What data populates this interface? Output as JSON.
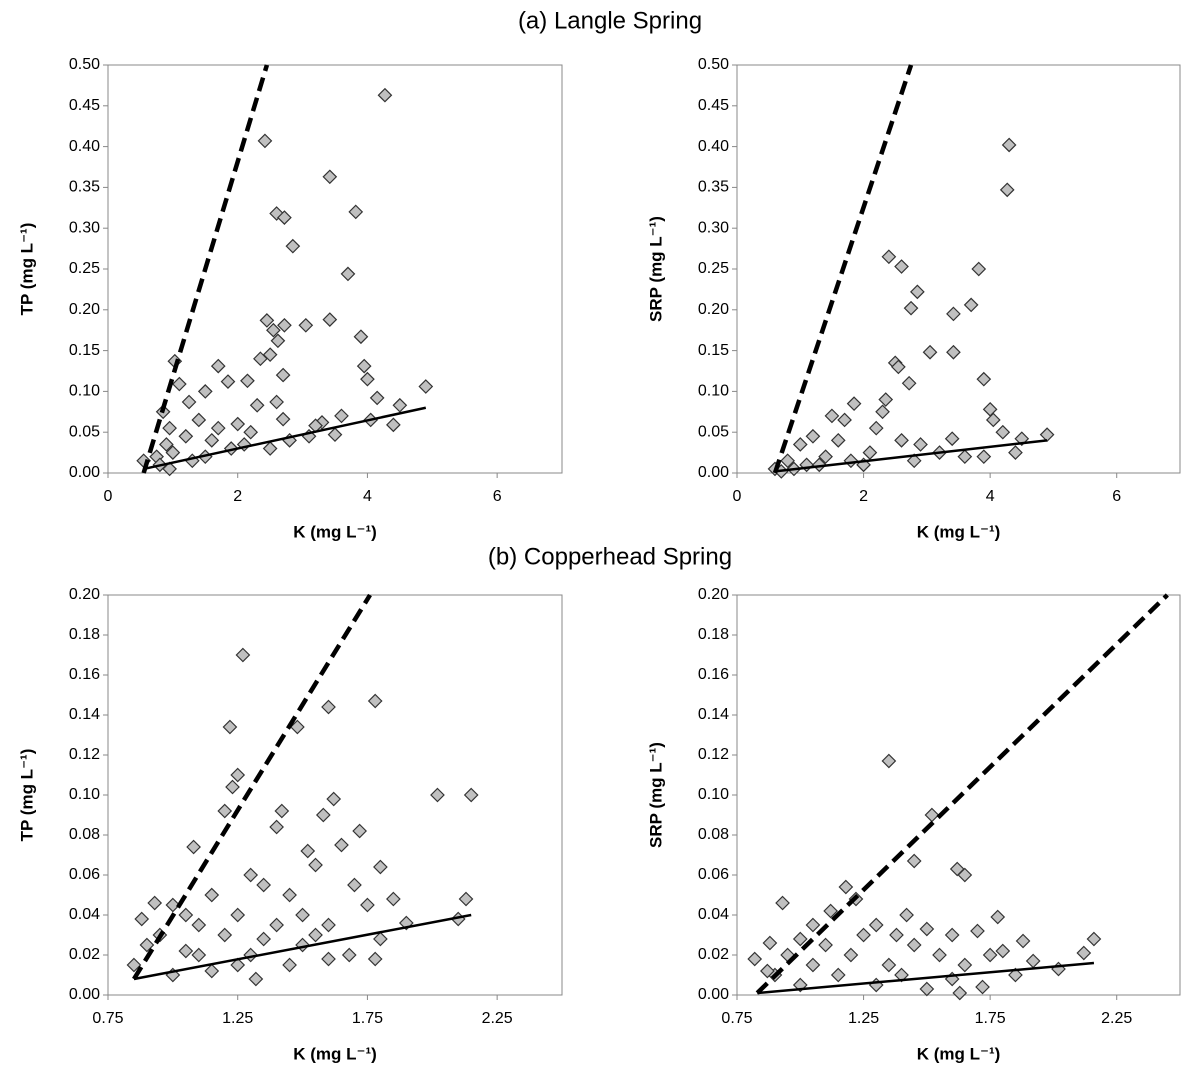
{
  "titles": [
    "(a) Langle Spring",
    "(b) Copperhead Spring"
  ],
  "chart_data": [
    {
      "type": "scatter",
      "x_label": "K (mg L⁻¹)",
      "y_label": "TP (mg L⁻¹)",
      "color": "#c0c0c0",
      "edgecolor": "#333333",
      "xlim": [
        0,
        7
      ],
      "ylim": [
        0,
        0.5
      ],
      "xticks": [
        0,
        2,
        4,
        6
      ],
      "yticks": [
        {
          "value": 0,
          "label": "0.00"
        },
        {
          "value": 0.05,
          "label": "0.05"
        },
        {
          "value": 0.1,
          "label": "0.10"
        },
        {
          "value": 0.15,
          "label": "0.15"
        },
        {
          "value": 0.2,
          "label": "0.20"
        },
        {
          "value": 0.25,
          "label": "0.25"
        },
        {
          "value": 0.3,
          "label": "0.30"
        },
        {
          "value": 0.35,
          "label": "0.35"
        },
        {
          "value": 0.4,
          "label": "0.40"
        },
        {
          "value": 0.45,
          "label": "0.45"
        },
        {
          "value": 0.5,
          "label": "0.50"
        }
      ],
      "x": [
        4.27,
        2.42,
        3.42,
        2.6,
        2.72,
        3.82,
        2.85,
        3.7,
        2.45,
        3.42,
        3.05,
        2.72,
        2.55,
        3.9,
        2.62,
        2.35,
        2.5,
        1.7,
        1.03,
        3.95,
        2.7,
        4.0,
        1.85,
        2.15,
        1.1,
        4.9,
        1.5,
        4.15,
        2.6,
        1.25,
        4.5,
        2.3,
        0.85,
        3.6,
        4.05,
        2.7,
        1.4,
        3.3,
        2.0,
        0.95,
        4.4,
        3.2,
        1.7,
        2.2,
        3.5,
        1.2,
        2.8,
        1.6,
        3.1,
        0.9,
        1.9,
        1.0,
        2.5,
        0.75,
        1.3,
        0.55,
        0.95,
        0.8,
        1.5,
        2.1
      ],
      "values": [
        0.463,
        0.407,
        0.363,
        0.318,
        0.313,
        0.32,
        0.278,
        0.244,
        0.187,
        0.188,
        0.181,
        0.181,
        0.175,
        0.167,
        0.162,
        0.14,
        0.145,
        0.131,
        0.137,
        0.131,
        0.12,
        0.115,
        0.112,
        0.113,
        0.109,
        0.106,
        0.1,
        0.092,
        0.087,
        0.087,
        0.083,
        0.083,
        0.075,
        0.07,
        0.065,
        0.066,
        0.065,
        0.062,
        0.06,
        0.055,
        0.059,
        0.058,
        0.055,
        0.05,
        0.047,
        0.045,
        0.04,
        0.04,
        0.045,
        0.035,
        0.03,
        0.025,
        0.03,
        0.02,
        0.015,
        0.015,
        0.005,
        0.01,
        0.02,
        0.035
      ],
      "lines": [
        {
          "style": "dashed",
          "x": [
            0.55,
            2.45
          ],
          "values": [
            0,
            0.5
          ]
        },
        {
          "style": "solid",
          "x": [
            0.55,
            4.9
          ],
          "values": [
            0.005,
            0.08
          ]
        }
      ]
    },
    {
      "type": "scatter",
      "x_label": "K (mg L⁻¹)",
      "y_label": "SRP (mg L⁻¹)",
      "color": "#c0c0c0",
      "edgecolor": "#333333",
      "xlim": [
        0,
        7
      ],
      "ylim": [
        0,
        0.5
      ],
      "xticks": [
        0,
        2,
        4,
        6
      ],
      "yticks": [
        {
          "value": 0,
          "label": "0.00"
        },
        {
          "value": 0.05,
          "label": "0.05"
        },
        {
          "value": 0.1,
          "label": "0.10"
        },
        {
          "value": 0.15,
          "label": "0.15"
        },
        {
          "value": 0.2,
          "label": "0.20"
        },
        {
          "value": 0.25,
          "label": "0.25"
        },
        {
          "value": 0.3,
          "label": "0.30"
        },
        {
          "value": 0.35,
          "label": "0.35"
        },
        {
          "value": 0.4,
          "label": "0.40"
        },
        {
          "value": 0.45,
          "label": "0.45"
        },
        {
          "value": 0.5,
          "label": "0.50"
        }
      ],
      "x": [
        4.3,
        4.27,
        2.4,
        2.6,
        3.82,
        2.85,
        3.7,
        2.75,
        3.42,
        3.05,
        3.42,
        2.5,
        2.55,
        3.9,
        2.72,
        2.35,
        2.3,
        4.0,
        1.85,
        4.05,
        1.5,
        1.7,
        2.2,
        4.2,
        1.2,
        2.6,
        3.4,
        4.5,
        4.9,
        1.0,
        1.6,
        2.9,
        3.6,
        2.1,
        0.8,
        1.4,
        3.2,
        4.4,
        0.6,
        0.9,
        1.1,
        2.0,
        2.8,
        3.9,
        1.8,
        0.7,
        1.3
      ],
      "values": [
        0.402,
        0.347,
        0.265,
        0.253,
        0.25,
        0.222,
        0.206,
        0.202,
        0.195,
        0.148,
        0.148,
        0.135,
        0.13,
        0.115,
        0.11,
        0.09,
        0.075,
        0.078,
        0.085,
        0.065,
        0.07,
        0.065,
        0.055,
        0.05,
        0.045,
        0.04,
        0.042,
        0.042,
        0.047,
        0.035,
        0.04,
        0.035,
        0.02,
        0.025,
        0.015,
        0.02,
        0.025,
        0.025,
        0.005,
        0.005,
        0.01,
        0.01,
        0.015,
        0.02,
        0.015,
        0.002,
        0.01
      ],
      "lines": [
        {
          "style": "dashed",
          "x": [
            0.6,
            2.75
          ],
          "values": [
            0,
            0.5
          ]
        },
        {
          "style": "solid",
          "x": [
            0.6,
            4.9
          ],
          "values": [
            0.002,
            0.04
          ]
        }
      ]
    },
    {
      "type": "scatter",
      "x_label": "K (mg L⁻¹)",
      "y_label": "TP (mg L⁻¹)",
      "color": "#c0c0c0",
      "edgecolor": "#333333",
      "xlim": [
        0.75,
        2.5
      ],
      "ylim": [
        0,
        0.2
      ],
      "xticks": [
        0.75,
        1.25,
        1.75,
        2.25
      ],
      "yticks": [
        {
          "value": 0,
          "label": "0.00"
        },
        {
          "value": 0.02,
          "label": "0.02"
        },
        {
          "value": 0.04,
          "label": "0.04"
        },
        {
          "value": 0.06,
          "label": "0.06"
        },
        {
          "value": 0.08,
          "label": "0.08"
        },
        {
          "value": 0.1,
          "label": "0.10"
        },
        {
          "value": 0.12,
          "label": "0.12"
        },
        {
          "value": 0.14,
          "label": "0.14"
        },
        {
          "value": 0.16,
          "label": "0.16"
        },
        {
          "value": 0.18,
          "label": "0.18"
        },
        {
          "value": 0.2,
          "label": "0.20"
        }
      ],
      "x": [
        1.27,
        1.78,
        1.6,
        1.22,
        1.48,
        1.25,
        1.23,
        2.02,
        2.15,
        1.62,
        1.2,
        1.42,
        1.58,
        1.72,
        1.4,
        1.08,
        1.52,
        1.3,
        1.65,
        1.55,
        1.8,
        0.93,
        1.0,
        1.15,
        1.35,
        1.45,
        1.7,
        2.13,
        1.85,
        1.05,
        1.25,
        1.5,
        1.75,
        0.88,
        1.1,
        1.4,
        1.6,
        1.9,
        2.1,
        0.95,
        1.2,
        1.35,
        1.55,
        1.8,
        0.9,
        1.05,
        1.3,
        1.5,
        1.68,
        0.85,
        1.0,
        1.15,
        1.32,
        1.45,
        1.6,
        1.78,
        1.25,
        1.1
      ],
      "values": [
        0.17,
        0.147,
        0.144,
        0.134,
        0.134,
        0.11,
        0.104,
        0.1,
        0.1,
        0.098,
        0.092,
        0.092,
        0.09,
        0.082,
        0.084,
        0.074,
        0.072,
        0.06,
        0.075,
        0.065,
        0.064,
        0.046,
        0.045,
        0.05,
        0.055,
        0.05,
        0.055,
        0.048,
        0.048,
        0.04,
        0.04,
        0.04,
        0.045,
        0.038,
        0.035,
        0.035,
        0.035,
        0.036,
        0.038,
        0.03,
        0.03,
        0.028,
        0.03,
        0.028,
        0.025,
        0.022,
        0.02,
        0.025,
        0.02,
        0.015,
        0.01,
        0.012,
        0.008,
        0.015,
        0.018,
        0.018,
        0.015,
        0.02
      ],
      "lines": [
        {
          "style": "dashed",
          "x": [
            0.85,
            1.76
          ],
          "values": [
            0.008,
            0.2
          ]
        },
        {
          "style": "solid",
          "x": [
            0.85,
            2.15
          ],
          "values": [
            0.008,
            0.04
          ]
        }
      ]
    },
    {
      "type": "scatter",
      "x_label": "K (mg L⁻¹)",
      "y_label": "SRP (mg L⁻¹)",
      "color": "#c0c0c0",
      "edgecolor": "#333333",
      "xlim": [
        0.75,
        2.5
      ],
      "ylim": [
        0,
        0.2
      ],
      "xticks": [
        0.75,
        1.25,
        1.75,
        2.25
      ],
      "yticks": [
        {
          "value": 0,
          "label": "0.00"
        },
        {
          "value": 0.02,
          "label": "0.02"
        },
        {
          "value": 0.04,
          "label": "0.04"
        },
        {
          "value": 0.06,
          "label": "0.06"
        },
        {
          "value": 0.08,
          "label": "0.08"
        },
        {
          "value": 0.1,
          "label": "0.10"
        },
        {
          "value": 0.12,
          "label": "0.12"
        },
        {
          "value": 0.14,
          "label": "0.14"
        },
        {
          "value": 0.16,
          "label": "0.16"
        },
        {
          "value": 0.18,
          "label": "0.18"
        },
        {
          "value": 0.2,
          "label": "0.20"
        }
      ],
      "x": [
        1.35,
        1.52,
        1.45,
        1.62,
        1.65,
        1.18,
        1.22,
        0.93,
        1.12,
        1.42,
        1.78,
        1.05,
        1.3,
        1.5,
        1.7,
        2.16,
        0.88,
        1.0,
        1.25,
        1.38,
        1.6,
        1.88,
        1.1,
        1.45,
        1.8,
        2.12,
        0.82,
        0.95,
        1.2,
        1.55,
        1.75,
        1.05,
        1.35,
        1.65,
        1.92,
        2.02,
        0.9,
        1.15,
        1.4,
        1.6,
        1.85,
        1.0,
        1.3,
        1.5,
        1.72,
        1.63,
        0.87
      ],
      "values": [
        0.117,
        0.09,
        0.067,
        0.063,
        0.06,
        0.054,
        0.048,
        0.046,
        0.042,
        0.04,
        0.039,
        0.035,
        0.035,
        0.033,
        0.032,
        0.028,
        0.026,
        0.028,
        0.03,
        0.03,
        0.03,
        0.027,
        0.025,
        0.025,
        0.022,
        0.021,
        0.018,
        0.02,
        0.02,
        0.02,
        0.02,
        0.015,
        0.015,
        0.015,
        0.017,
        0.013,
        0.01,
        0.01,
        0.01,
        0.008,
        0.01,
        0.005,
        0.005,
        0.003,
        0.004,
        0.001,
        0.012
      ],
      "lines": [
        {
          "style": "dashed",
          "x": [
            0.83,
            2.45
          ],
          "values": [
            0.001,
            0.2
          ]
        },
        {
          "style": "solid",
          "x": [
            0.83,
            2.16
          ],
          "values": [
            0.001,
            0.016
          ]
        }
      ]
    }
  ]
}
